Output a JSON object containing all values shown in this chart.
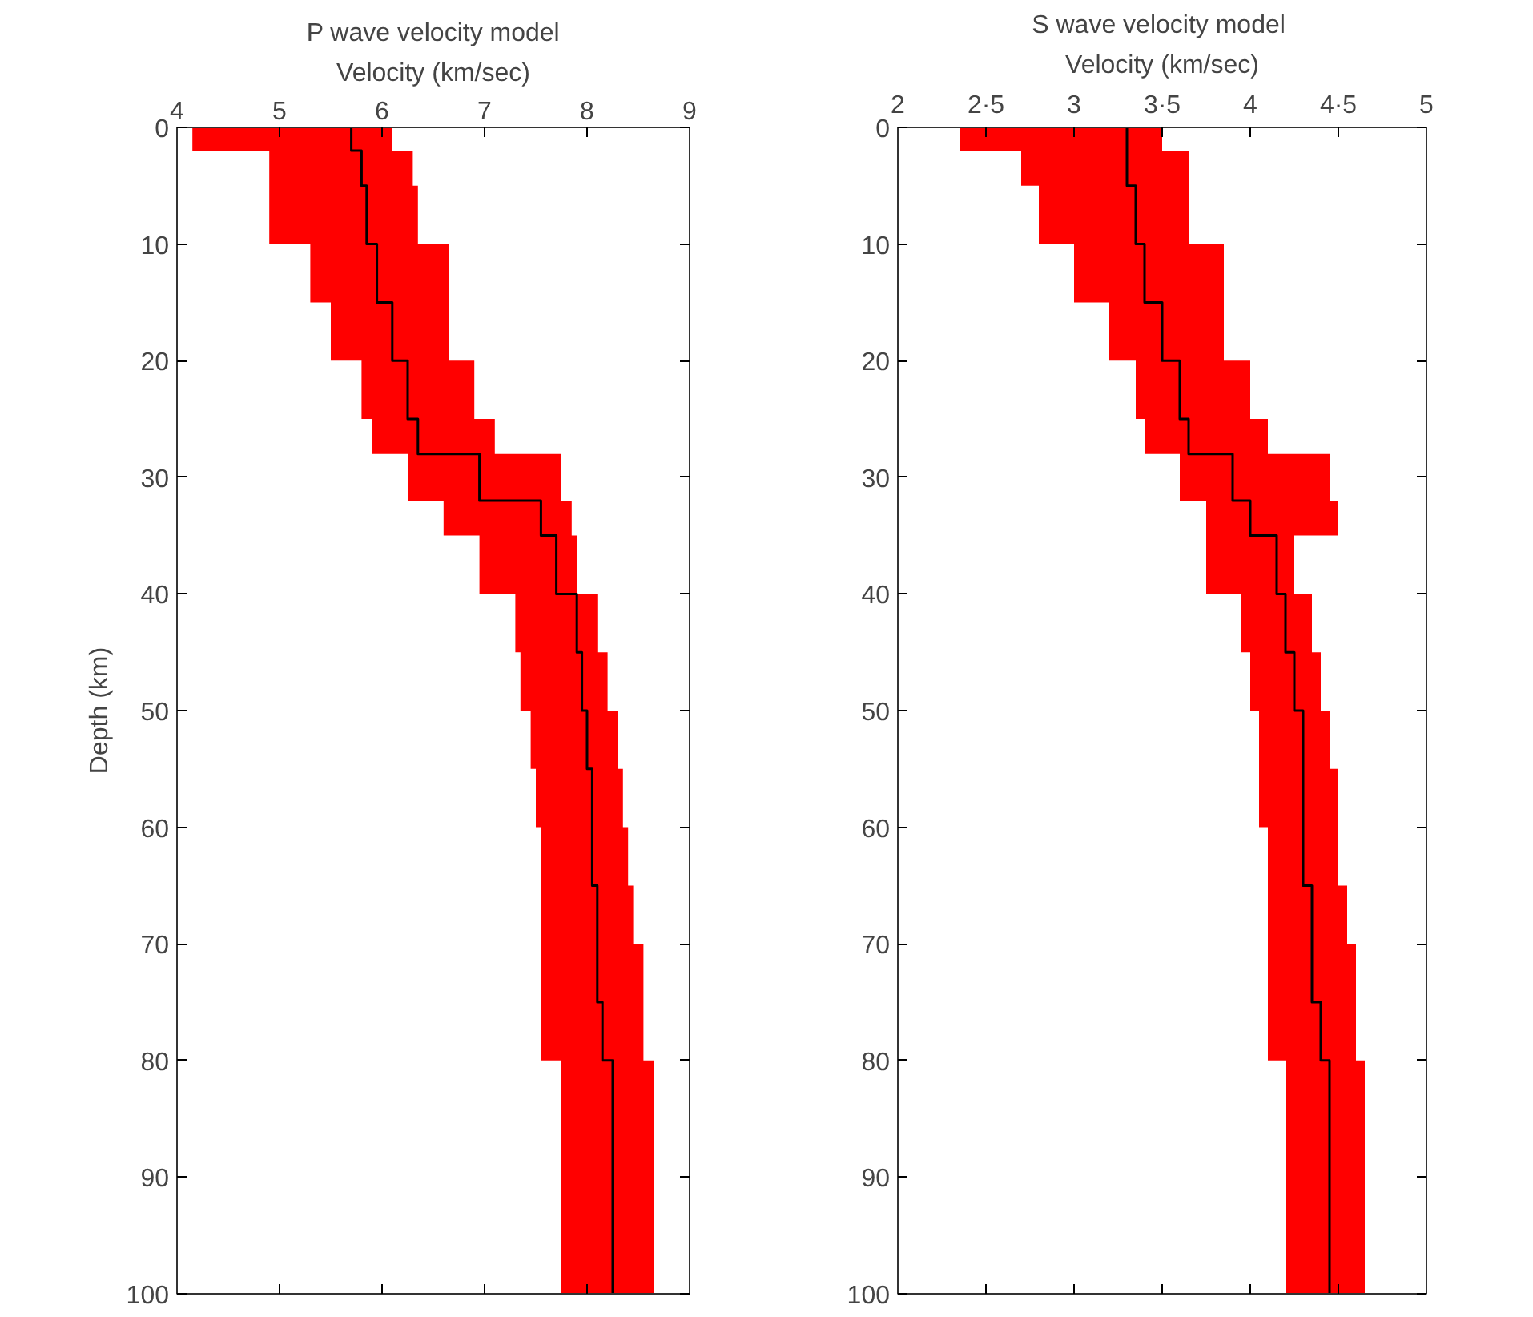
{
  "chart_data": [
    {
      "type": "step",
      "orientation": "horizontal",
      "title": "P wave velocity model",
      "xlabel": "Velocity (km/sec)",
      "ylabel": "Depth (km)",
      "x": [
        0,
        2,
        5,
        10,
        15,
        20,
        25,
        28,
        32,
        35,
        40,
        45,
        50,
        55,
        60,
        65,
        70,
        75,
        80,
        100
      ],
      "xlim": [
        4,
        9
      ],
      "xticks": [
        4,
        5,
        6,
        7,
        8,
        9
      ],
      "ylim": [
        100,
        0
      ],
      "yticks": [
        0,
        10,
        20,
        30,
        40,
        50,
        60,
        70,
        80,
        90,
        100
      ],
      "series": [
        {
          "color": "#000000",
          "values": [
            5.7,
            5.8,
            5.85,
            5.95,
            6.1,
            6.25,
            6.35,
            6.95,
            7.55,
            7.7,
            7.9,
            7.95,
            8.0,
            8.05,
            8.05,
            8.1,
            8.1,
            8.15,
            8.25,
            8.25
          ],
          "lower": [
            4.15,
            4.9,
            4.9,
            5.3,
            5.5,
            5.8,
            5.9,
            6.25,
            6.6,
            6.95,
            7.3,
            7.35,
            7.45,
            7.5,
            7.55,
            7.55,
            7.55,
            7.55,
            7.75,
            7.75
          ],
          "upper": [
            6.1,
            6.3,
            6.35,
            6.65,
            6.65,
            6.9,
            7.1,
            7.75,
            7.85,
            7.9,
            8.1,
            8.2,
            8.3,
            8.35,
            8.4,
            8.45,
            8.55,
            8.55,
            8.65,
            8.65
          ]
        }
      ]
    },
    {
      "type": "step",
      "orientation": "horizontal",
      "title": "S  wave velocity model",
      "xlabel": "Velocity (km/sec)",
      "x": [
        0,
        2,
        5,
        10,
        15,
        20,
        25,
        28,
        32,
        35,
        40,
        45,
        50,
        55,
        60,
        65,
        70,
        75,
        80,
        100
      ],
      "xlim": [
        2,
        5
      ],
      "xticks": [
        2,
        {
          "value": 2.5,
          "label": "2·5"
        },
        3,
        {
          "value": 3.5,
          "label": "3·5"
        },
        4,
        {
          "value": 4.5,
          "label": "4·5"
        },
        5
      ],
      "ylim": [
        100,
        0
      ],
      "yticks": [
        0,
        10,
        20,
        30,
        40,
        50,
        60,
        70,
        80,
        90,
        100
      ],
      "series": [
        {
          "color": "#000000",
          "values": [
            3.3,
            3.3,
            3.35,
            3.4,
            3.5,
            3.6,
            3.65,
            3.9,
            4.0,
            4.15,
            4.2,
            4.25,
            4.3,
            4.3,
            4.3,
            4.35,
            4.35,
            4.4,
            4.45,
            4.45
          ],
          "lower": [
            2.35,
            2.7,
            2.8,
            3.0,
            3.2,
            3.35,
            3.4,
            3.6,
            3.75,
            3.75,
            3.95,
            4.0,
            4.05,
            4.05,
            4.1,
            4.1,
            4.1,
            4.1,
            4.2,
            4.2
          ],
          "upper": [
            3.5,
            3.65,
            3.65,
            3.85,
            3.85,
            4.0,
            4.1,
            4.45,
            4.5,
            4.25,
            4.35,
            4.4,
            4.45,
            4.5,
            4.5,
            4.55,
            4.6,
            4.6,
            4.65,
            4.65
          ]
        }
      ]
    }
  ]
}
